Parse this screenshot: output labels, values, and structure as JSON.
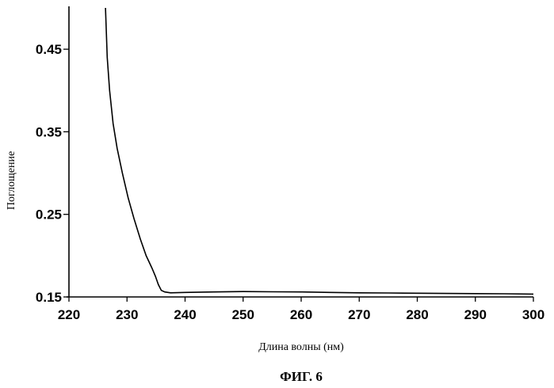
{
  "chart_data": {
    "type": "line",
    "xlabel": "Длина волны (нм)",
    "ylabel": "Поглощение",
    "caption": "ФИГ. 6",
    "xlim": [
      220,
      300
    ],
    "ylim": [
      0.15,
      0.5
    ],
    "x_ticks": [
      220,
      230,
      240,
      250,
      260,
      270,
      280,
      290,
      300
    ],
    "x_tick_labels": [
      "220",
      "230",
      "240",
      "250",
      "260",
      "270",
      "280",
      "290",
      "300"
    ],
    "y_ticks": [
      0.15,
      0.25,
      0.35,
      0.45
    ],
    "y_tick_labels": [
      "0.15",
      "0.25",
      "0.35",
      "0.45"
    ],
    "grid": false,
    "series": [
      {
        "x": [
          226.3,
          226.6,
          227.0,
          227.6,
          228.3,
          229.2,
          230.2,
          231.2,
          232.3,
          233.3,
          234.3,
          234.9,
          235.4,
          235.9,
          236.5,
          237.5,
          240,
          245,
          250,
          255,
          260,
          265,
          270,
          275,
          280,
          285,
          290,
          295,
          300
        ],
        "y": [
          0.5,
          0.44,
          0.4,
          0.36,
          0.33,
          0.3,
          0.27,
          0.245,
          0.22,
          0.2,
          0.185,
          0.175,
          0.165,
          0.158,
          0.156,
          0.155,
          0.1555,
          0.156,
          0.1565,
          0.1562,
          0.156,
          0.1555,
          0.155,
          0.1548,
          0.1545,
          0.1542,
          0.154,
          0.1538,
          0.1535
        ]
      }
    ]
  }
}
